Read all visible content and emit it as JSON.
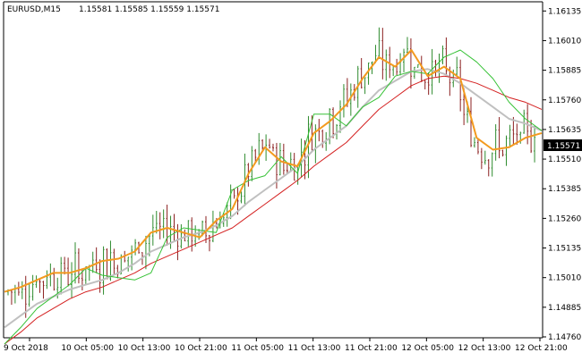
{
  "header": {
    "symbol": "EURUSD,M15",
    "ohlc": "1.15581 1.15585 1.15559 1.15571"
  },
  "price_axis": {
    "ticks": [
      "1.16135",
      "1.16010",
      "1.15885",
      "1.15760",
      "1.15635",
      "1.15510",
      "1.15385",
      "1.15260",
      "1.15135",
      "1.15010",
      "1.14885",
      "1.14760"
    ],
    "current_price": "1.15571"
  },
  "time_axis": {
    "ticks": [
      "9 Oct 2018",
      "10 Oct 05:00",
      "10 Oct 13:00",
      "10 Oct 21:00",
      "11 Oct 05:00",
      "11 Oct 13:00",
      "11 Oct 21:00",
      "12 Oct 05:00",
      "12 Oct 13:00",
      "12 Oct 21:00"
    ]
  },
  "colors": {
    "bull": "#2e8b2e",
    "bear": "#8b2020",
    "orange_line": "#f39a1f",
    "gray_line": "#c0c0c0",
    "red_line": "#d42020",
    "green_line": "#36c236",
    "price_tag_bg": "#000000",
    "price_tag_fg": "#ffffff"
  },
  "chart_data": {
    "type": "line",
    "title": "EURUSD,M15",
    "ylim": [
      1.1476,
      1.1617
    ],
    "series": [
      {
        "name": "",
        "values": [
          1.1495,
          1.1497,
          1.15,
          1.1503,
          1.1503,
          1.1505,
          1.1508,
          1.1509,
          1.1512,
          1.152,
          1.1522,
          1.152,
          1.1518,
          1.1525,
          1.153,
          1.1545,
          1.1556,
          1.155,
          1.1548,
          1.1562,
          1.1567,
          1.1574,
          1.1585,
          1.1594,
          1.159,
          1.1597,
          1.1586,
          1.159,
          1.1585,
          1.156,
          1.1555,
          1.1556,
          1.156,
          1.1562
        ]
      },
      {
        "name": "",
        "values": [
          1.148,
          1.1485,
          1.149,
          1.1493,
          1.1496,
          1.1498,
          1.15,
          1.1503,
          1.1507,
          1.1512,
          1.1515,
          1.1518,
          1.152,
          1.1523,
          1.1527,
          1.1533,
          1.1538,
          1.1543,
          1.1548,
          1.1555,
          1.156,
          1.1565,
          1.1573,
          1.158,
          1.1584,
          1.1588,
          1.1589,
          1.1587,
          1.1583,
          1.1578,
          1.1573,
          1.1568,
          1.1566,
          1.1563
        ]
      },
      {
        "name": "",
        "values": [
          1.1473,
          1.1478,
          1.1484,
          1.1488,
          1.1492,
          1.1495,
          1.1497,
          1.15,
          1.1503,
          1.1507,
          1.151,
          1.1513,
          1.1516,
          1.1519,
          1.1522,
          1.1527,
          1.1532,
          1.1537,
          1.1542,
          1.1548,
          1.1553,
          1.1558,
          1.1565,
          1.1572,
          1.1577,
          1.1582,
          1.1585,
          1.1586,
          1.1585,
          1.1583,
          1.158,
          1.1577,
          1.1575,
          1.1572
        ]
      },
      {
        "name": "",
        "values": [
          1.1473,
          1.148,
          1.1488,
          1.1493,
          1.1498,
          1.1505,
          1.1502,
          1.1501,
          1.15,
          1.1503,
          1.1518,
          1.1522,
          1.1521,
          1.152,
          1.1538,
          1.1542,
          1.1544,
          1.1552,
          1.1545,
          1.157,
          1.157,
          1.1565,
          1.1573,
          1.1577,
          1.1586,
          1.1588,
          1.1587,
          1.1594,
          1.1597,
          1.1592,
          1.1585,
          1.1575,
          1.1568,
          1.1563
        ]
      }
    ]
  }
}
